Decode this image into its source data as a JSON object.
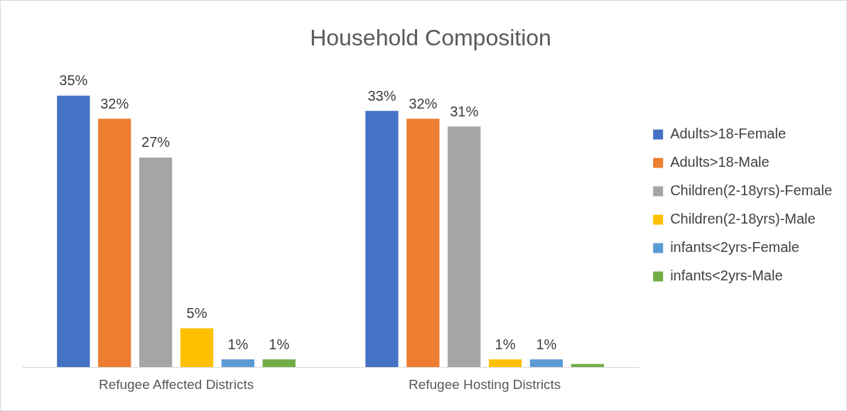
{
  "chart_data": {
    "type": "bar",
    "title": "Household Composition",
    "categories": [
      "Refugee Affected Districts",
      "Refugee Hosting Districts"
    ],
    "series": [
      {
        "name": "Adults>18-Female",
        "color": "#4472c4",
        "values": [
          35,
          33
        ],
        "value_labels": [
          "35%",
          "33%"
        ]
      },
      {
        "name": "Adults>18-Male",
        "color": "#ed7d31",
        "values": [
          32,
          32
        ],
        "value_labels": [
          "32%",
          "32%"
        ]
      },
      {
        "name": "Children(2-18yrs)-Female",
        "color": "#a5a5a5",
        "values": [
          27,
          31
        ],
        "value_labels": [
          "27%",
          "31%"
        ]
      },
      {
        "name": "Children(2-18yrs)-Male",
        "color": "#ffc000",
        "values": [
          5,
          1
        ],
        "value_labels": [
          "5%",
          "1%"
        ]
      },
      {
        "name": "infants<2yrs-Female",
        "color": "#5b9bd5",
        "values": [
          1,
          1
        ],
        "value_labels": [
          "1%",
          "1%"
        ]
      },
      {
        "name": "infants<2yrs-Male",
        "color": "#70ad47",
        "values": [
          1,
          0.4
        ],
        "value_labels": [
          "1%",
          null
        ]
      }
    ],
    "legend": "right",
    "grid": false
  }
}
